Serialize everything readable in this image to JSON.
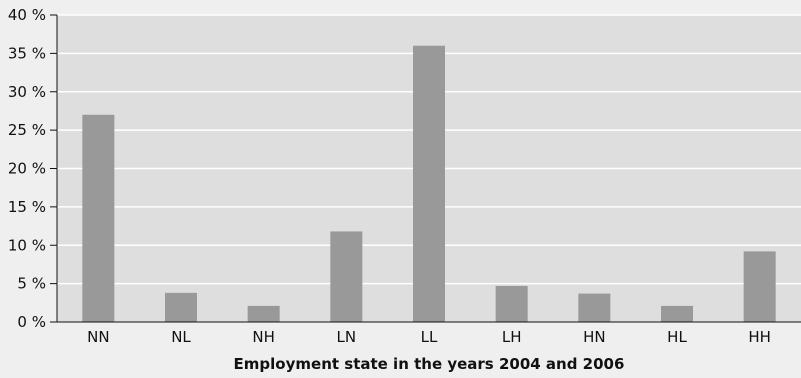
{
  "chart_data": {
    "type": "bar",
    "categories": [
      "NN",
      "NL",
      "NH",
      "LN",
      "LL",
      "LH",
      "HN",
      "HL",
      "HH"
    ],
    "values": [
      27,
      3.8,
      2.1,
      11.8,
      36,
      4.7,
      3.7,
      2.1,
      9.2
    ],
    "yticks": [
      "0 %",
      "5 %",
      "10 %",
      "15 %",
      "20 %",
      "25 %",
      "30 %",
      "35 %",
      "40 %"
    ],
    "ylim": [
      0,
      40
    ],
    "xlabel": "Employment state in the years 2004 and 2006",
    "grid": true,
    "legend": "none",
    "colors": {
      "background": "#efefef",
      "plot_background": "#dedede",
      "gridline": "#ffffff",
      "bar": "#999999",
      "axis": "#111111"
    }
  }
}
